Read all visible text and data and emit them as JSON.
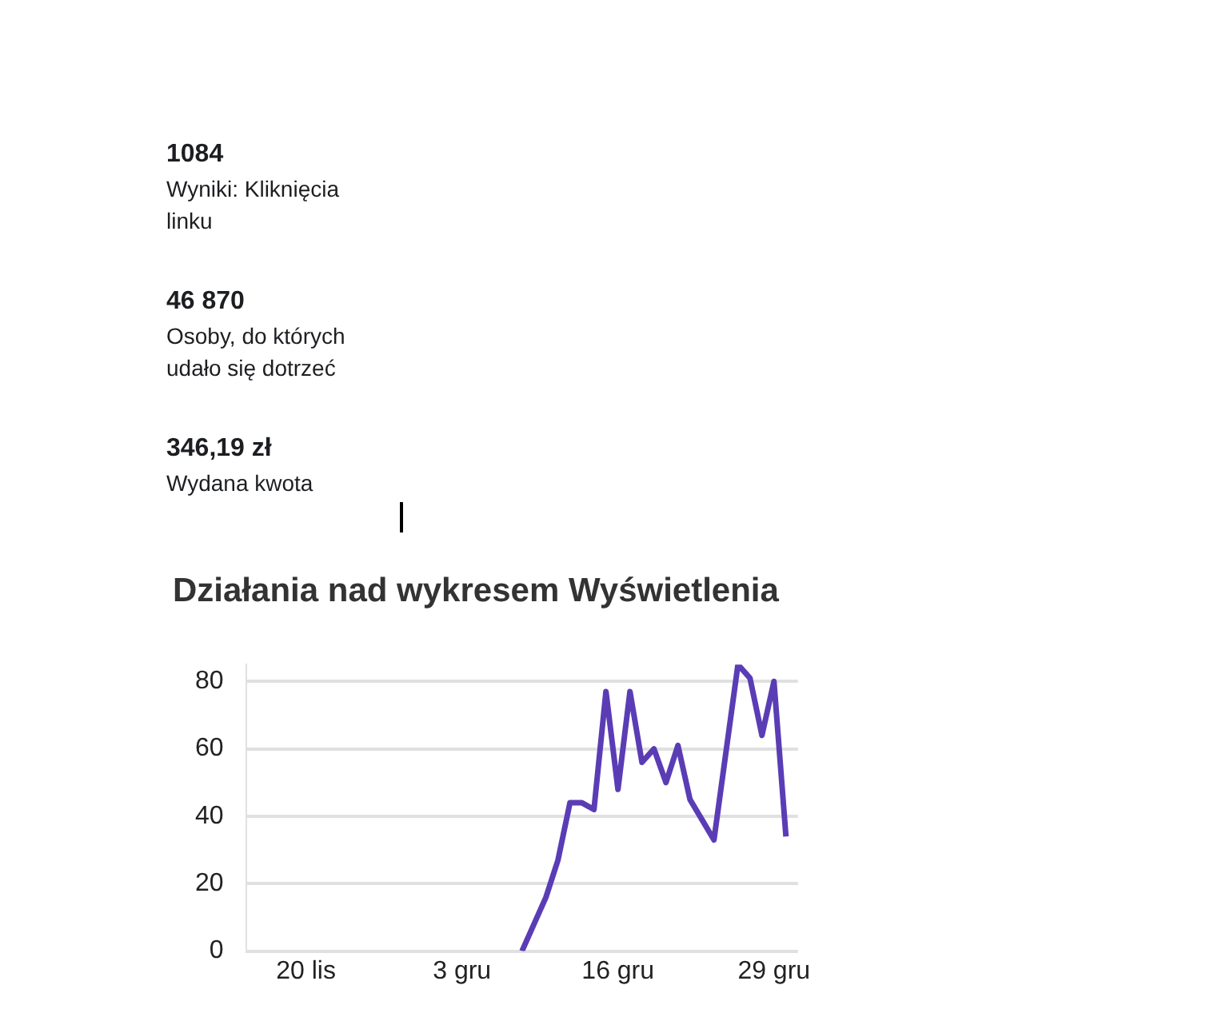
{
  "chart_data": [
    {
      "type": "other",
      "annotations": [
        "1084",
        "Wyniki: Kliknięcia linku",
        "46 870",
        "Osoby, do których udało się dotrzeć",
        "346,19 zł",
        "Wydana kwota"
      ]
    },
    {
      "type": "line",
      "title": "Działania nad wykresem Wyświetlenia",
      "x": [
        "--12-08",
        "--12-09",
        "--12-10",
        "--12-11",
        "--12-12",
        "--12-13",
        "--12-14",
        "--12-15",
        "--12-16",
        "--12-17",
        "--12-18",
        "--12-19",
        "--12-20",
        "--12-21",
        "--12-22",
        "--12-23",
        "--12-24",
        "--12-25",
        "--12-26",
        "--12-27",
        "--12-28",
        "--12-29",
        "--12-30"
      ],
      "series": [
        {
          "color": "#5a3db5",
          "values": [
            0,
            8,
            16,
            27,
            44,
            44,
            42,
            77,
            48,
            77,
            56,
            60,
            50,
            61,
            45,
            39,
            33,
            59,
            85,
            81,
            64,
            80,
            34
          ]
        }
      ],
      "xlim": [
        "--11-15",
        "--12-31"
      ],
      "xticks": [
        {
          "value": "--11-20",
          "label": "20 lis"
        },
        {
          "value": "--12-03",
          "label": "3 gru"
        },
        {
          "value": "--12-16",
          "label": "16 gru"
        },
        {
          "value": "--12-29",
          "label": "29 gru"
        }
      ],
      "ylim": [
        0,
        85
      ],
      "yticks": [
        0,
        20,
        40,
        60,
        80
      ],
      "grid": "y",
      "legend": false,
      "marker": "none",
      "line_style": "solid"
    }
  ]
}
